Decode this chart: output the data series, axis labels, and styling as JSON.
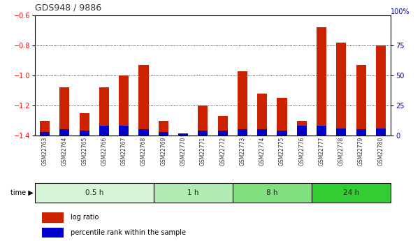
{
  "title": "GDS948 / 9886",
  "samples": [
    "GSM22763",
    "GSM22764",
    "GSM22765",
    "GSM22766",
    "GSM22767",
    "GSM22768",
    "GSM22769",
    "GSM22770",
    "GSM22771",
    "GSM22772",
    "GSM22773",
    "GSM22774",
    "GSM22775",
    "GSM22776",
    "GSM22777",
    "GSM22778",
    "GSM22779",
    "GSM22780"
  ],
  "log_ratio": [
    -1.3,
    -1.08,
    -1.25,
    -1.08,
    -1.0,
    -0.93,
    -1.3,
    -1.4,
    -1.2,
    -1.27,
    -0.97,
    -1.12,
    -1.15,
    -1.3,
    -0.68,
    -0.78,
    -0.93,
    -0.8
  ],
  "percentile_rank": [
    3,
    5,
    4,
    8,
    8,
    5,
    3,
    2,
    4,
    4,
    5,
    5,
    4,
    8,
    8,
    6,
    5,
    6
  ],
  "groups": [
    {
      "label": "0.5 h",
      "start": 0,
      "end": 6
    },
    {
      "label": "1 h",
      "start": 6,
      "end": 10
    },
    {
      "label": "8 h",
      "start": 10,
      "end": 14
    },
    {
      "label": "24 h",
      "start": 14,
      "end": 18
    }
  ],
  "group_colors": [
    "#d6f5d6",
    "#b3ecb3",
    "#80e080",
    "#33cc33"
  ],
  "ylim_left": [
    -1.4,
    -0.6
  ],
  "ylim_right": [
    0,
    100
  ],
  "yticks_left": [
    -1.4,
    -1.2,
    -1.0,
    -0.8,
    -0.6
  ],
  "yticks_right": [
    0,
    25,
    50,
    75
  ],
  "bar_color_red": "#cc2200",
  "bar_color_blue": "#0000cc",
  "plot_bg": "#ffffff",
  "title_color": "#333333",
  "right_label_color": "#0000bb",
  "xticklabel_color": "#333333",
  "bar_width": 0.5
}
